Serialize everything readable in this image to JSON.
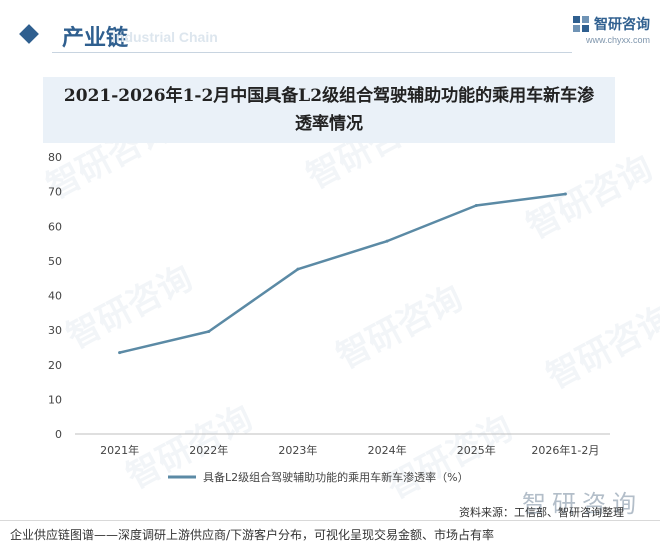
{
  "header": {
    "section_title": "产业链",
    "ghost_text": "Industrial Chain",
    "brand_name": "智研咨询",
    "brand_site": "www.chyxx.com"
  },
  "watermark_text": "智研咨询",
  "footer": {
    "source": "资料来源：工信部、智研咨询整理",
    "description": "企业供应链图谱——深度调研上游供应商/下游客户分布，可视化呈现交易金额、市场占有率"
  },
  "chart_data": {
    "type": "line",
    "title": "2021-2026年1-2月中国具备L2级组合驾驶辅助功能的乘用车新车渗透率情况",
    "categories": [
      "2021年",
      "2022年",
      "2023年",
      "2024年",
      "2025年",
      "2026年1-2月"
    ],
    "series": [
      {
        "name": "具备L2级组合驾驶辅助功能的乘用车新车渗透率（%）",
        "values": [
          23.5,
          29.6,
          47.6,
          55.7,
          66.0,
          69.3
        ],
        "color": "#5b8aa5"
      }
    ],
    "ylim": [
      0,
      80
    ],
    "yticks": [
      0,
      10,
      20,
      30,
      40,
      50,
      60,
      70,
      80
    ],
    "grid": false,
    "legend_position": "bottom"
  }
}
